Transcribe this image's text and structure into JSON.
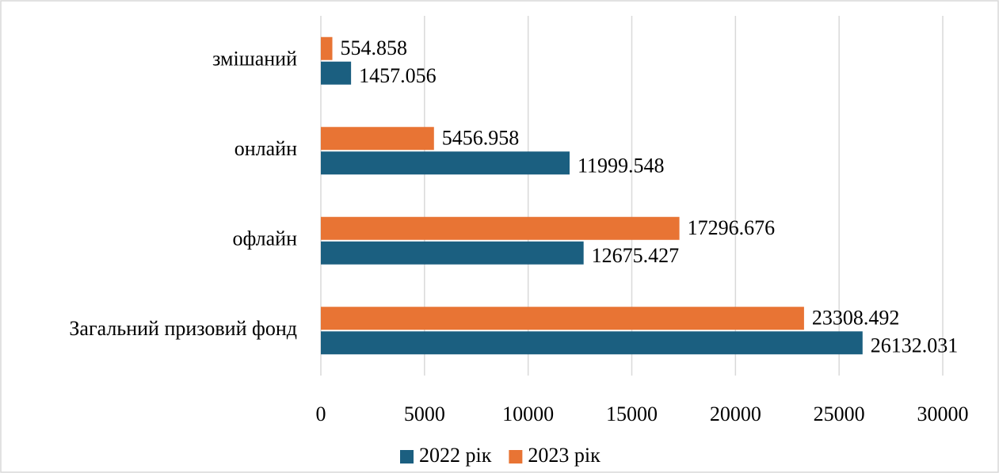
{
  "chart_data": {
    "type": "hbar",
    "categories": [
      "Загальний призовий фонд",
      "офлайн",
      "онлайн",
      "змішаний"
    ],
    "series": [
      {
        "name": "2022 рік",
        "color": "#1b5f80",
        "values": [
          26132.031,
          12675.427,
          11999.548,
          1457.056
        ]
      },
      {
        "name": "2023 рік",
        "color": "#e87434",
        "values": [
          23308.492,
          17296.676,
          5456.958,
          554.858
        ]
      }
    ],
    "xlim": [
      0,
      30000
    ],
    "xticks": [
      0,
      5000,
      10000,
      15000,
      20000,
      25000,
      30000
    ],
    "grid": true,
    "data_labels": true,
    "legend": "bottom"
  }
}
